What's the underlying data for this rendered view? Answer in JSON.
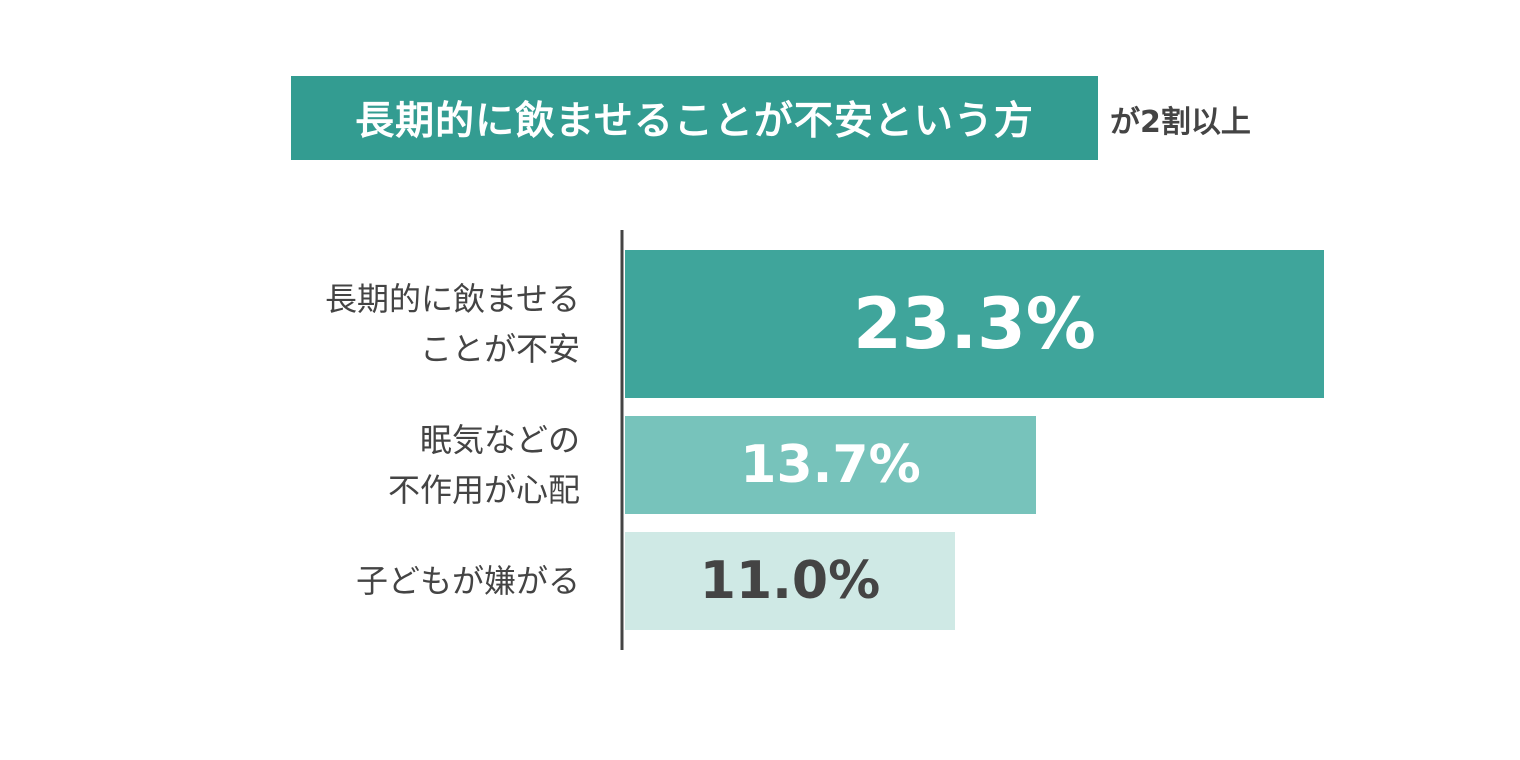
{
  "chart_data": {
    "type": "bar",
    "orientation": "horizontal",
    "title": "長期的に飲ませることが不安という方",
    "subtitle": "が2割以上",
    "categories": [
      [
        "長期的に飲ませる",
        "ことが不安"
      ],
      [
        "眠気などの",
        "不作用が心配"
      ],
      [
        "子どもが嫌がる"
      ]
    ],
    "values": [
      23.3,
      13.7,
      11.0
    ],
    "value_labels": [
      "23.3%",
      "13.7%",
      "11.0%"
    ],
    "unit": "%",
    "xlim": [
      0,
      23.3
    ],
    "grid": false,
    "legend": "none",
    "colors": {
      "title_bg": "#339c91",
      "bars": [
        "#3fa59b",
        "#77c3bb",
        "#cfe9e5"
      ],
      "value_text": [
        "#ffffff",
        "#ffffff",
        "#444444"
      ],
      "axis": "#444444",
      "category_text": "#444444"
    }
  }
}
